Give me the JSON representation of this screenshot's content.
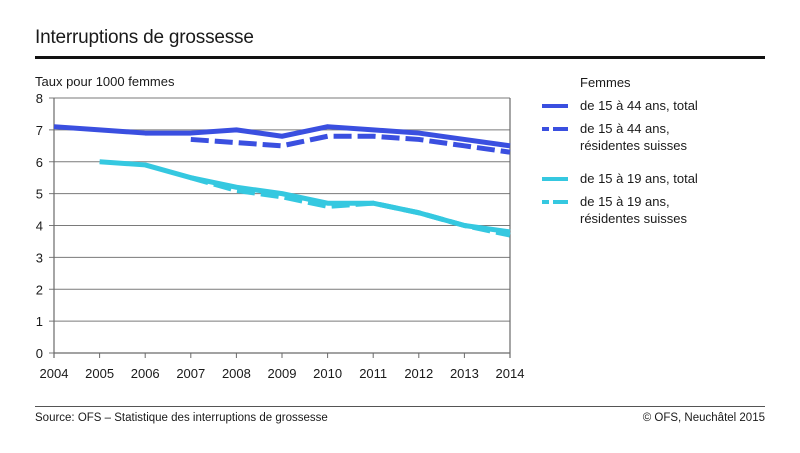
{
  "header": {
    "title": "Interruptions de grossesse"
  },
  "footer": {
    "source": "Source: OFS – Statistique des interruptions de grossesse",
    "copyright": "© OFS, Neuchâtel 2015"
  },
  "chart_data": {
    "type": "line",
    "title": "Interruptions de grossesse",
    "xlabel": "",
    "ylabel": "Taux pour 1000 femmes",
    "x": [
      2004,
      2005,
      2006,
      2007,
      2008,
      2009,
      2010,
      2011,
      2012,
      2013,
      2014
    ],
    "x_tick_labels": [
      "2004",
      "2005",
      "2006",
      "2007",
      "2008",
      "2009",
      "2010",
      "2011",
      "2012",
      "2013",
      "2014"
    ],
    "ylim": [
      0,
      8
    ],
    "y_ticks": [
      0,
      1,
      2,
      3,
      4,
      5,
      6,
      7,
      8
    ],
    "grid": "horizontal",
    "legend_title": "Femmes",
    "legend_position": "right",
    "series": [
      {
        "name": "de 15 à 44 ans, total",
        "color": "#3a4fe0",
        "style": "solid",
        "values": [
          7.1,
          7.0,
          6.9,
          6.9,
          7.0,
          6.8,
          7.1,
          7.0,
          6.9,
          6.7,
          6.5
        ]
      },
      {
        "name": "de 15 à 44 ans,\nrésidentes suisses",
        "color": "#3a4fe0",
        "style": "dashed",
        "values": [
          null,
          null,
          null,
          6.7,
          6.6,
          6.5,
          6.8,
          6.8,
          6.7,
          6.5,
          6.3
        ]
      },
      {
        "name": "de 15 à 19 ans, total",
        "color": "#35c8e0",
        "style": "solid",
        "values": [
          null,
          6.0,
          5.9,
          5.5,
          5.2,
          5.0,
          4.7,
          4.7,
          4.4,
          4.0,
          3.8
        ]
      },
      {
        "name": "de 15 à 19 ans,\nrésidentes suisses",
        "color": "#35c8e0",
        "style": "dashed",
        "values": [
          null,
          null,
          null,
          5.5,
          5.1,
          4.9,
          4.6,
          4.7,
          4.4,
          4.0,
          3.7
        ]
      }
    ]
  }
}
